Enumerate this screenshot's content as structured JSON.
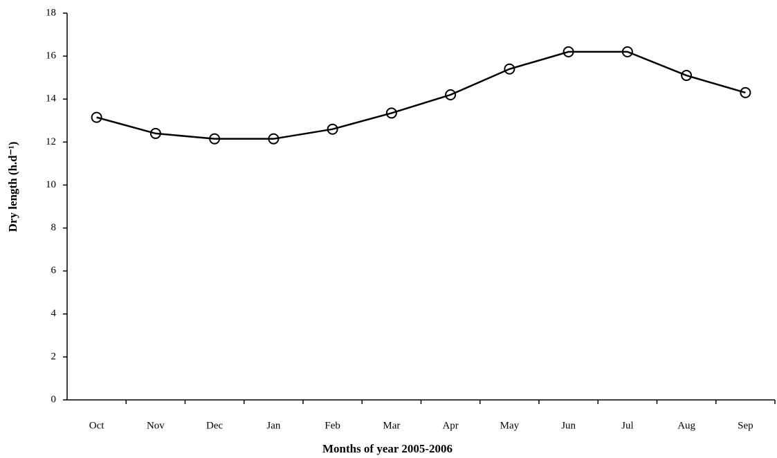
{
  "chart_data": {
    "type": "line",
    "x_label": "Months of year 2005-2006",
    "y_label": "Dry length (h.d⁻¹)",
    "categories": [
      "Oct",
      "Nov",
      "Dec",
      "Jan",
      "Feb",
      "Mar",
      "Apr",
      "May",
      "Jun",
      "Jul",
      "Aug",
      "Sep"
    ],
    "series": [
      {
        "color": "#000000",
        "values": [
          13.15,
          12.4,
          12.15,
          12.15,
          12.6,
          13.35,
          14.2,
          15.4,
          16.2,
          16.2,
          15.1,
          14.3
        ]
      }
    ],
    "ylim": [
      0,
      18
    ],
    "yticks": [
      0,
      2,
      4,
      6,
      8,
      10,
      12,
      14,
      16,
      18
    ],
    "grid": false
  }
}
